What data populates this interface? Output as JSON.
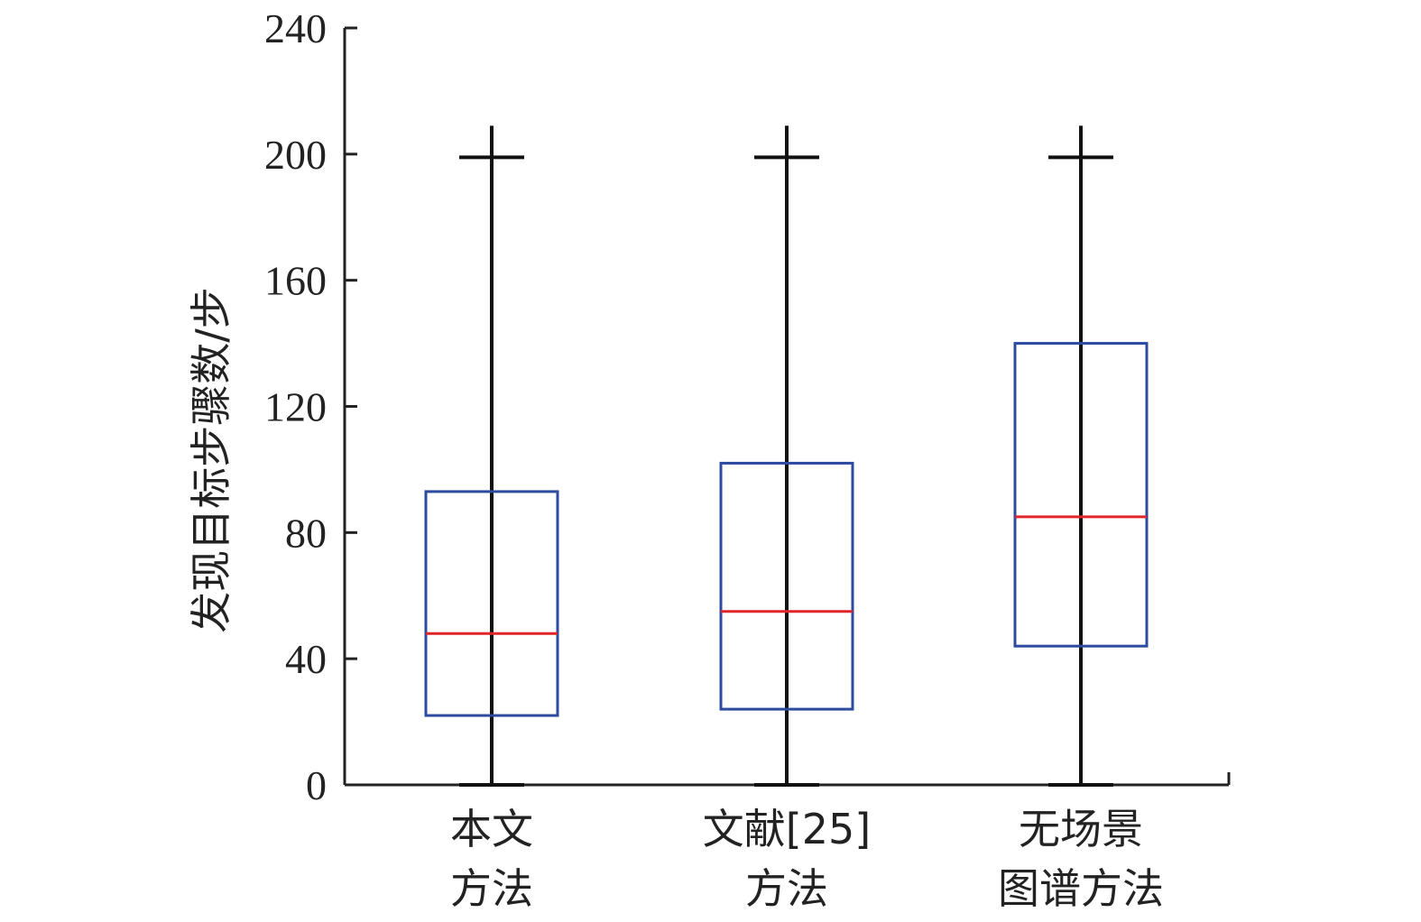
{
  "chart_data": {
    "type": "box",
    "ylabel": "发现目标步骤数/步",
    "xlabel": "",
    "ylim": [
      0,
      240
    ],
    "yticks": [
      0,
      40,
      80,
      120,
      160,
      200,
      240
    ],
    "grid": false,
    "categories": [
      {
        "lines": [
          "本文",
          "方法"
        ]
      },
      {
        "lines": [
          "文献[25]",
          "方法"
        ]
      },
      {
        "lines": [
          "无场景",
          "图谱方法"
        ]
      }
    ],
    "boxes": [
      {
        "min": 0,
        "q1": 22,
        "median": 48,
        "q3": 93,
        "max": 209,
        "cap": 199
      },
      {
        "min": 0,
        "q1": 24,
        "median": 55,
        "q3": 102,
        "max": 209,
        "cap": 199
      },
      {
        "min": 0,
        "q1": 44,
        "median": 85,
        "q3": 140,
        "max": 209,
        "cap": 199
      }
    ],
    "colors": {
      "box": "#2b4aa0",
      "median": "#e0262b",
      "whisker": "#111111",
      "axis": "#222222"
    }
  }
}
